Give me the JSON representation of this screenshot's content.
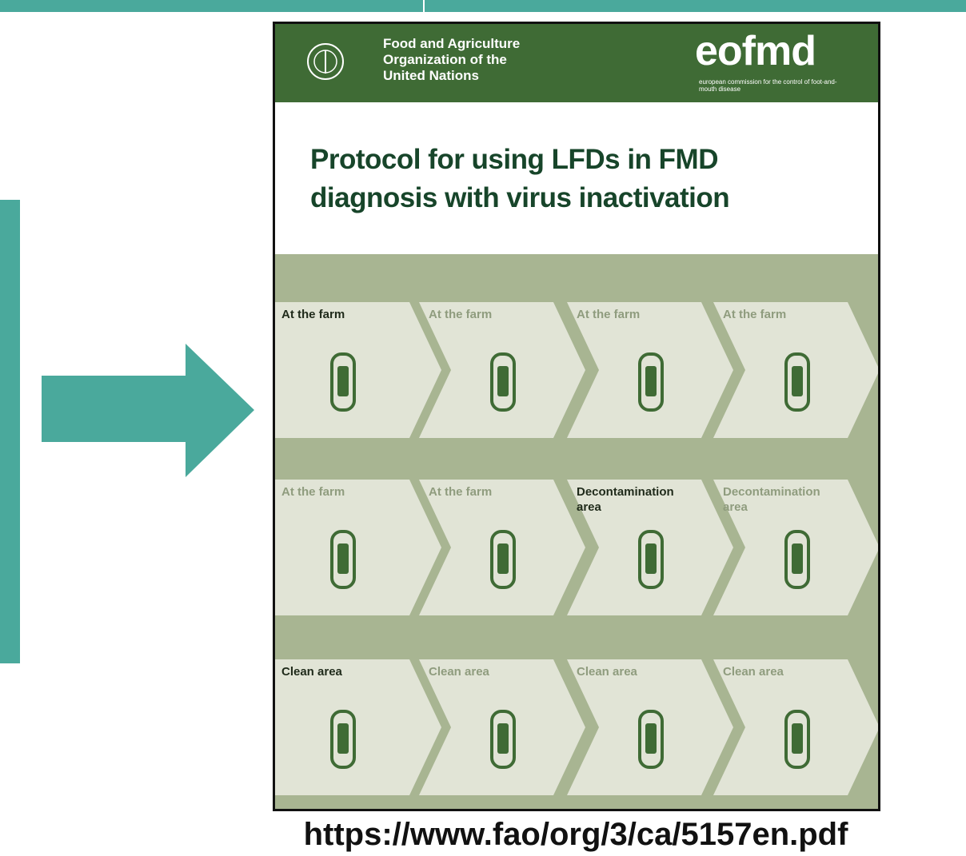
{
  "header": {
    "organization": [
      "Food and Agriculture",
      "Organization of the",
      "United Nations"
    ],
    "logo": "eofmd",
    "logo_subtitle": "european commission for the control of foot-and-mouth disease"
  },
  "title": [
    "Protocol for using LFDs in FMD",
    "diagnosis with virus inactivation"
  ],
  "steps": [
    [
      {
        "label": "At the farm",
        "highlight": true
      },
      {
        "label": "At the farm",
        "highlight": false
      },
      {
        "label": "At the farm",
        "highlight": false
      },
      {
        "label": "At the farm",
        "highlight": false
      }
    ],
    [
      {
        "label": "At the farm",
        "highlight": false
      },
      {
        "label": "At the farm",
        "highlight": false
      },
      {
        "label": "Decontamination area",
        "highlight": true
      },
      {
        "label": "Decontamination area",
        "highlight": false
      }
    ],
    [
      {
        "label": "Clean area",
        "highlight": true
      },
      {
        "label": "Clean area",
        "highlight": false
      },
      {
        "label": "Clean area",
        "highlight": false
      },
      {
        "label": "Clean area",
        "highlight": false
      }
    ]
  ],
  "url": "https://www.fao/org/3/ca/5157en.pdf"
}
